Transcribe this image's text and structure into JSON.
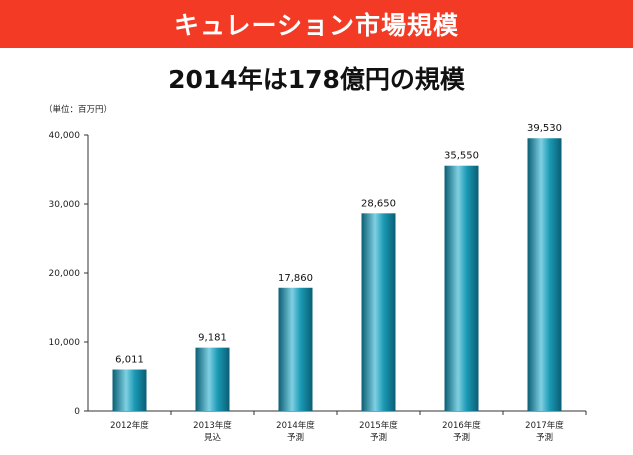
{
  "banner": {
    "title": "キュレーション市場規模"
  },
  "headline": "2014年は178億円の規模",
  "colors": {
    "banner": "#f23a24",
    "bar_light": "#7fd0e2",
    "bar_mid": "#1b9ab5",
    "bar_dark": "#0a5e74"
  },
  "chart_data": {
    "type": "bar",
    "unit_label": "（単位：百万円）",
    "categories": [
      [
        "2012年度"
      ],
      [
        "2013年度",
        "見込"
      ],
      [
        "2014年度",
        "予測"
      ],
      [
        "2015年度",
        "予測"
      ],
      [
        "2016年度",
        "予測"
      ],
      [
        "2017年度",
        "予測"
      ]
    ],
    "values": [
      6011,
      9181,
      17860,
      28650,
      35550,
      39530
    ],
    "value_labels": [
      "6,011",
      "9,181",
      "17,860",
      "28,650",
      "35,550",
      "39,530"
    ],
    "yticks": [
      0,
      10000,
      20000,
      30000,
      40000
    ],
    "ytick_labels": [
      "0",
      "10,000",
      "20,000",
      "30,000",
      "40,000"
    ],
    "ylim": [
      0,
      40000
    ],
    "grid": false,
    "legend": "none"
  }
}
